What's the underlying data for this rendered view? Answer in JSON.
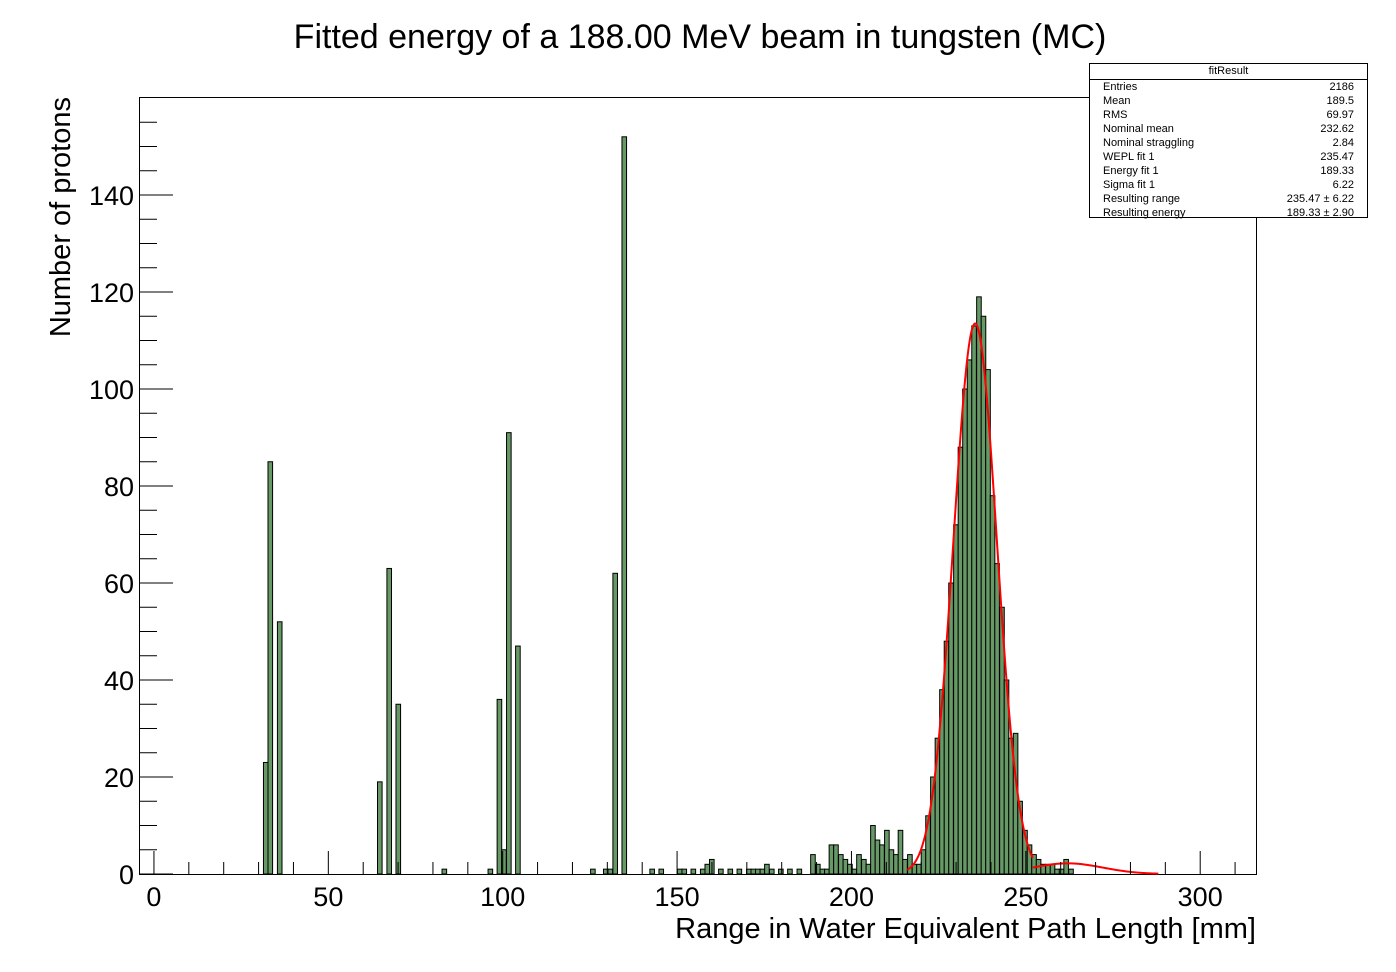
{
  "chart_data": {
    "type": "bar",
    "title": "Fitted energy of a 188.00 MeV beam in tungsten (MC)",
    "xlabel": "Range in Water Equivalent Path Length [mm]",
    "ylabel": "Number of protons",
    "xlim": [
      -4,
      316
    ],
    "ylim": [
      0,
      160
    ],
    "x_ticks": [
      0,
      50,
      100,
      150,
      200,
      250,
      300
    ],
    "y_ticks": [
      0,
      20,
      40,
      60,
      80,
      100,
      120,
      140
    ],
    "x_tick_labels": [
      "0",
      "50",
      "100",
      "150",
      "200",
      "250",
      "300"
    ],
    "y_tick_labels": [
      "0",
      "20",
      "40",
      "60",
      "80",
      "100",
      "120",
      "140"
    ],
    "bin_width": 1.32,
    "colors": {
      "fill": "#669966",
      "fit": "#ff0000",
      "edge": "#000000"
    },
    "bins": [
      [
        31.4,
        23
      ],
      [
        32.7,
        85
      ],
      [
        35.4,
        52
      ],
      [
        64.1,
        19
      ],
      [
        66.8,
        63
      ],
      [
        69.4,
        35
      ],
      [
        82.6,
        1
      ],
      [
        95.8,
        1
      ],
      [
        98.4,
        36
      ],
      [
        99.7,
        5
      ],
      [
        101.1,
        91
      ],
      [
        103.7,
        47
      ],
      [
        125.2,
        1
      ],
      [
        128.9,
        1
      ],
      [
        130.2,
        1
      ],
      [
        131.6,
        62
      ],
      [
        134.2,
        152
      ],
      [
        142.2,
        1
      ],
      [
        144.8,
        1
      ],
      [
        150.1,
        1
      ],
      [
        151.4,
        1
      ],
      [
        154.0,
        1
      ],
      [
        156.7,
        1
      ],
      [
        158.0,
        2
      ],
      [
        159.3,
        3
      ],
      [
        161.9,
        1
      ],
      [
        164.6,
        1
      ],
      [
        167.2,
        1
      ],
      [
        169.9,
        1
      ],
      [
        171.2,
        1
      ],
      [
        172.5,
        1
      ],
      [
        173.8,
        1
      ],
      [
        175.1,
        2
      ],
      [
        176.5,
        1
      ],
      [
        179.1,
        1
      ],
      [
        181.7,
        1
      ],
      [
        184.4,
        1
      ],
      [
        188.3,
        4
      ],
      [
        189.7,
        2
      ],
      [
        191.0,
        1
      ],
      [
        192.3,
        1
      ],
      [
        193.6,
        6
      ],
      [
        194.9,
        6
      ],
      [
        196.3,
        4
      ],
      [
        197.6,
        3
      ],
      [
        198.9,
        2
      ],
      [
        200.2,
        1
      ],
      [
        201.5,
        4
      ],
      [
        202.9,
        3
      ],
      [
        204.2,
        2
      ],
      [
        205.5,
        10
      ],
      [
        206.8,
        7
      ],
      [
        208.1,
        6
      ],
      [
        209.5,
        9
      ],
      [
        210.8,
        5
      ],
      [
        212.1,
        4
      ],
      [
        213.4,
        9
      ],
      [
        214.7,
        3
      ],
      [
        216.1,
        4
      ],
      [
        217.4,
        2
      ],
      [
        218.7,
        2
      ],
      [
        220.0,
        5
      ],
      [
        221.3,
        12
      ],
      [
        222.7,
        20
      ],
      [
        224.0,
        28
      ],
      [
        225.3,
        38
      ],
      [
        226.6,
        48
      ],
      [
        227.9,
        60
      ],
      [
        229.3,
        72
      ],
      [
        230.6,
        88
      ],
      [
        231.9,
        100
      ],
      [
        233.2,
        106
      ],
      [
        234.5,
        113
      ],
      [
        235.9,
        119
      ],
      [
        237.2,
        115
      ],
      [
        238.5,
        104
      ],
      [
        239.8,
        78
      ],
      [
        241.1,
        64
      ],
      [
        242.5,
        55
      ],
      [
        243.8,
        40
      ],
      [
        245.1,
        28
      ],
      [
        246.4,
        29
      ],
      [
        247.7,
        15
      ],
      [
        249.1,
        9
      ],
      [
        250.4,
        6
      ],
      [
        251.7,
        4
      ],
      [
        253.0,
        3
      ],
      [
        254.3,
        2
      ],
      [
        255.7,
        2
      ],
      [
        257.0,
        2
      ],
      [
        258.3,
        1
      ],
      [
        259.6,
        1
      ],
      [
        260.9,
        3
      ],
      [
        262.3,
        1
      ]
    ],
    "fit": {
      "type": "gaussian",
      "mean": 235.47,
      "sigma": 6.22,
      "amplitude": 113.5,
      "x_range": [
        216,
        252
      ],
      "tail": {
        "mean": 262,
        "sigma": 10,
        "amplitude": 2.2,
        "x_range": [
          252,
          288
        ]
      }
    }
  },
  "stats_box": {
    "title": "fitResult",
    "rows": [
      {
        "label": "Entries",
        "value": "2186"
      },
      {
        "label": "Mean",
        "value": "189.5"
      },
      {
        "label": "RMS",
        "value": "69.97"
      },
      {
        "label": "Nominal mean",
        "value": "232.62"
      },
      {
        "label": "Nominal straggling",
        "value": "2.84"
      },
      {
        "label": "WEPL fit 1",
        "value": "235.47"
      },
      {
        "label": "Energy fit 1",
        "value": "189.33"
      },
      {
        "label": "Sigma fit 1",
        "value": "6.22"
      },
      {
        "label": "Resulting range",
        "value": "235.47 ± 6.22"
      },
      {
        "label": "Resulting energy",
        "value": "189.33 ± 2.90"
      }
    ]
  }
}
